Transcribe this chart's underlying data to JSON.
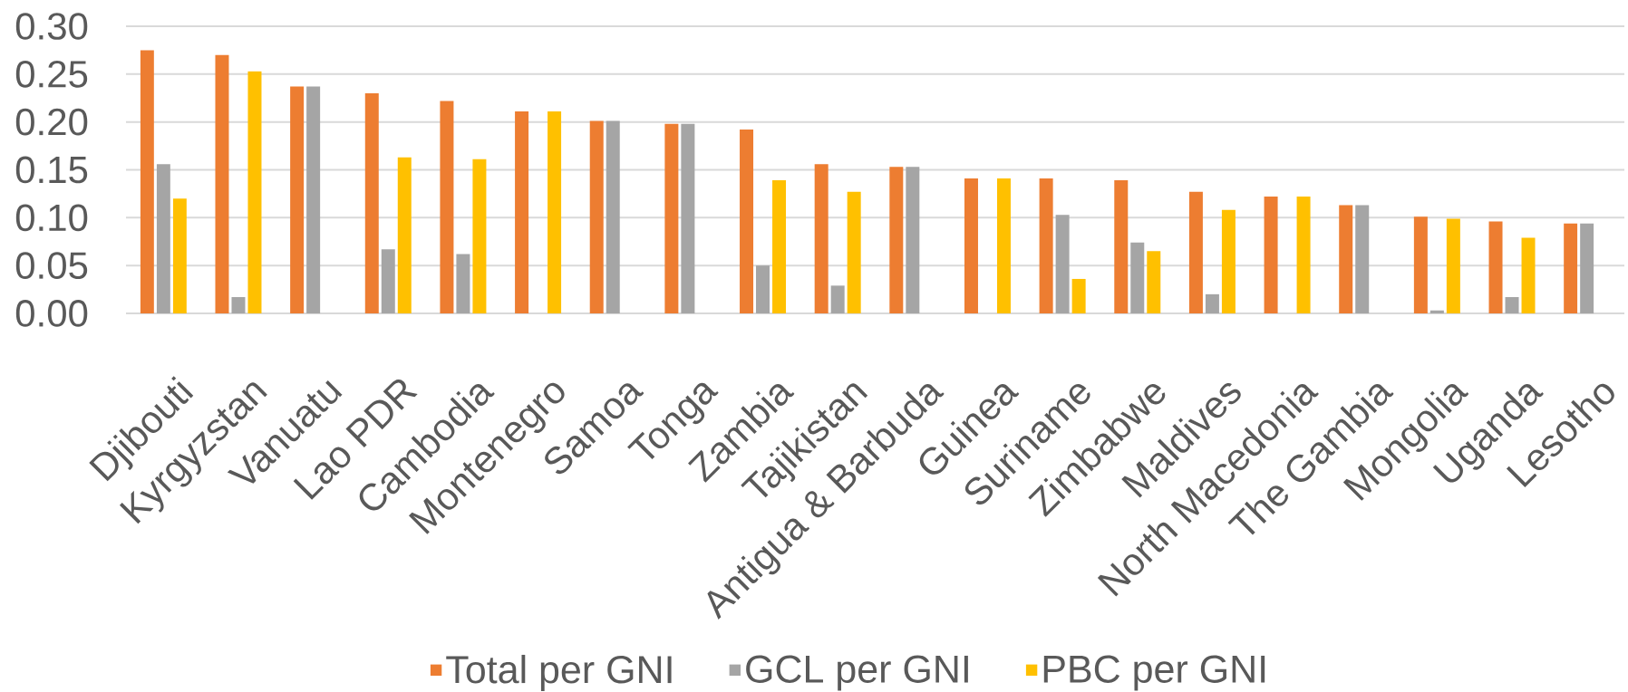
{
  "chart_data": {
    "type": "bar",
    "categories": [
      "Djibouti",
      "Kyrgyzstan",
      "Vanuatu",
      "Lao PDR",
      "Cambodia",
      "Montenegro",
      "Samoa",
      "Tonga",
      "Zambia",
      "Tajikistan",
      "Antigua & Barbuda",
      "Guinea",
      "Suriname",
      "Zimbabwe",
      "Maldives",
      "North Macedonia",
      "The Gambia",
      "Mongolia",
      "Uganda",
      "Lesotho"
    ],
    "series": [
      {
        "name": "Total per GNI",
        "color": "#ed7d31",
        "values": [
          0.275,
          0.27,
          0.237,
          0.23,
          0.222,
          0.211,
          0.201,
          0.198,
          0.192,
          0.156,
          0.153,
          0.141,
          0.141,
          0.139,
          0.127,
          0.122,
          0.113,
          0.101,
          0.096,
          0.094
        ]
      },
      {
        "name": "GCL per GNI",
        "color": "#a5a5a5",
        "values": [
          0.156,
          0.017,
          0.237,
          0.067,
          0.062,
          null,
          0.201,
          0.198,
          0.05,
          0.029,
          0.153,
          null,
          0.103,
          0.074,
          0.02,
          null,
          0.113,
          0.003,
          0.017,
          0.094
        ]
      },
      {
        "name": "PBC per GNI",
        "color": "#ffc000",
        "values": [
          0.12,
          0.253,
          null,
          0.163,
          0.161,
          0.211,
          null,
          null,
          0.139,
          0.127,
          null,
          0.141,
          0.036,
          0.065,
          0.108,
          0.122,
          null,
          0.099,
          0.079,
          null
        ]
      }
    ],
    "ylim": [
      0,
      0.3
    ],
    "yticks": [
      {
        "value": 0,
        "label": "0.00"
      },
      {
        "value": 0.05,
        "label": "0.05"
      },
      {
        "value": 0.1,
        "label": "0.10"
      },
      {
        "value": 0.15,
        "label": "0.15"
      },
      {
        "value": 0.2,
        "label": "0.20"
      },
      {
        "value": 0.25,
        "label": "0.25"
      },
      {
        "value": 0.3,
        "label": "0.30"
      }
    ],
    "grid": "y",
    "legend": "bottom"
  }
}
